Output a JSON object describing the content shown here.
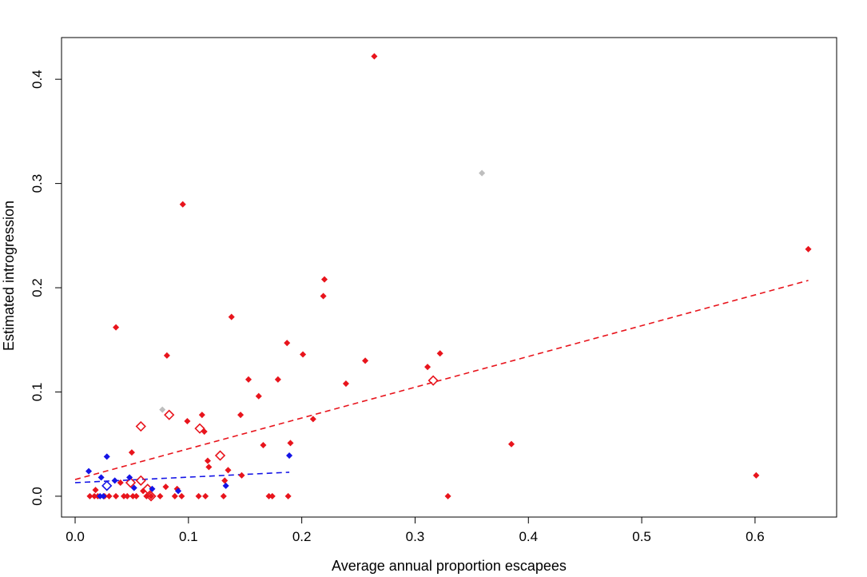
{
  "chart_data": {
    "type": "scatter",
    "title": "",
    "xlabel": "Average annual proportion escapees",
    "ylabel": "Estimated introgression",
    "xlim": [
      -0.012,
      0.672
    ],
    "ylim": [
      -0.02,
      0.44
    ],
    "xticks": [
      0.0,
      0.1,
      0.2,
      0.3,
      0.4,
      0.5,
      0.6
    ],
    "xtick_labels": [
      "0.0",
      "0.1",
      "0.2",
      "0.3",
      "0.4",
      "0.5",
      "0.6"
    ],
    "yticks": [
      0.0,
      0.1,
      0.2,
      0.3,
      0.4
    ],
    "ytick_labels": [
      "0.0",
      "0.1",
      "0.2",
      "0.3",
      "0.4"
    ],
    "grid": false,
    "legend": "none",
    "colors": {
      "red": "#e8141c",
      "blue": "#1414e6",
      "grey": "#bebebe",
      "axis": "#000000"
    },
    "series": [
      {
        "color": "#e8141c",
        "marker": "filled-diamond",
        "points": [
          [
            0.264,
            0.422
          ],
          [
            0.095,
            0.28
          ],
          [
            0.647,
            0.237
          ],
          [
            0.22,
            0.208
          ],
          [
            0.219,
            0.192
          ],
          [
            0.138,
            0.172
          ],
          [
            0.036,
            0.162
          ],
          [
            0.187,
            0.147
          ],
          [
            0.322,
            0.137
          ],
          [
            0.201,
            0.136
          ],
          [
            0.081,
            0.135
          ],
          [
            0.256,
            0.13
          ],
          [
            0.311,
            0.124
          ],
          [
            0.153,
            0.112
          ],
          [
            0.179,
            0.112
          ],
          [
            0.239,
            0.108
          ],
          [
            0.162,
            0.096
          ],
          [
            0.146,
            0.078
          ],
          [
            0.112,
            0.078
          ],
          [
            0.21,
            0.074
          ],
          [
            0.099,
            0.072
          ],
          [
            0.114,
            0.062
          ],
          [
            0.19,
            0.051
          ],
          [
            0.385,
            0.05
          ],
          [
            0.166,
            0.049
          ],
          [
            0.05,
            0.042
          ],
          [
            0.117,
            0.034
          ],
          [
            0.118,
            0.028
          ],
          [
            0.135,
            0.025
          ],
          [
            0.147,
            0.02
          ],
          [
            0.601,
            0.02
          ],
          [
            0.132,
            0.015
          ],
          [
            0.04,
            0.013
          ],
          [
            0.08,
            0.009
          ],
          [
            0.09,
            0.007
          ],
          [
            0.018,
            0.006
          ],
          [
            0.06,
            0.005
          ],
          [
            0.013,
            0.0
          ],
          [
            0.017,
            0.0
          ],
          [
            0.02,
            0.0
          ],
          [
            0.026,
            0.0
          ],
          [
            0.03,
            0.0
          ],
          [
            0.036,
            0.0
          ],
          [
            0.043,
            0.0
          ],
          [
            0.046,
            0.0
          ],
          [
            0.051,
            0.0
          ],
          [
            0.054,
            0.0
          ],
          [
            0.063,
            0.0
          ],
          [
            0.067,
            0.0
          ],
          [
            0.075,
            0.0
          ],
          [
            0.088,
            0.0
          ],
          [
            0.094,
            0.0
          ],
          [
            0.109,
            0.0
          ],
          [
            0.115,
            0.0
          ],
          [
            0.131,
            0.0
          ],
          [
            0.171,
            0.0
          ],
          [
            0.174,
            0.0
          ],
          [
            0.188,
            0.0
          ],
          [
            0.329,
            0.0
          ]
        ]
      },
      {
        "color": "#e8141c",
        "marker": "open-diamond",
        "points": [
          [
            0.058,
            0.067
          ],
          [
            0.083,
            0.078
          ],
          [
            0.11,
            0.065
          ],
          [
            0.128,
            0.039
          ],
          [
            0.316,
            0.111
          ],
          [
            0.049,
            0.013
          ],
          [
            0.058,
            0.015
          ],
          [
            0.064,
            0.007
          ],
          [
            0.067,
            0.0
          ]
        ]
      },
      {
        "color": "#1414e6",
        "marker": "filled-diamond",
        "points": [
          [
            0.012,
            0.024
          ],
          [
            0.028,
            0.038
          ],
          [
            0.023,
            0.018
          ],
          [
            0.035,
            0.015
          ],
          [
            0.048,
            0.018
          ],
          [
            0.052,
            0.008
          ],
          [
            0.068,
            0.007
          ],
          [
            0.091,
            0.005
          ],
          [
            0.133,
            0.01
          ],
          [
            0.189,
            0.039
          ],
          [
            0.022,
            0.0
          ],
          [
            0.025,
            0.0
          ]
        ]
      },
      {
        "color": "#1414e6",
        "marker": "open-diamond",
        "points": [
          [
            0.028,
            0.01
          ]
        ]
      },
      {
        "color": "#bebebe",
        "marker": "filled-diamond",
        "points": [
          [
            0.359,
            0.31
          ],
          [
            0.077,
            0.083
          ]
        ]
      }
    ],
    "lines": [
      {
        "color": "#e8141c",
        "style": "dashed",
        "x": [
          0.0,
          0.647
        ],
        "y": [
          0.016,
          0.207
        ]
      },
      {
        "color": "#1414e6",
        "style": "dashed",
        "x": [
          0.0,
          0.189
        ],
        "y": [
          0.013,
          0.023
        ]
      }
    ]
  }
}
